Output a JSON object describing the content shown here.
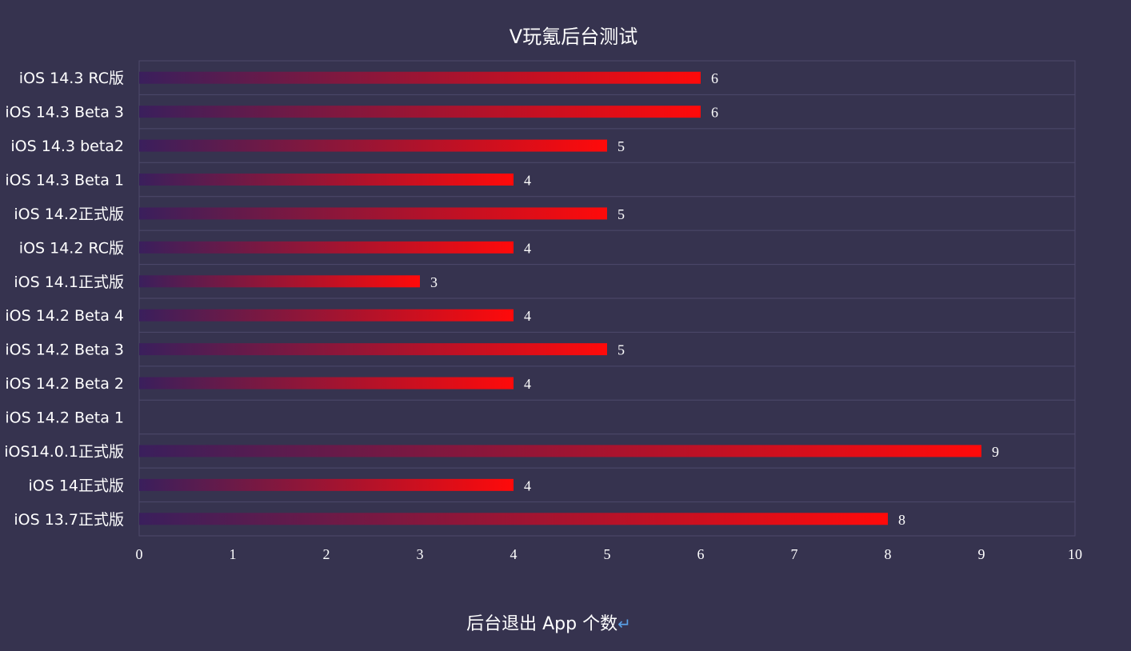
{
  "chart_data": {
    "type": "bar",
    "orientation": "horizontal",
    "title": "V玩氪后台测试",
    "xlabel": "后台退出 App 个数",
    "xlabel_suffix": "↵",
    "xlim": [
      0,
      10
    ],
    "xticks": [
      0,
      1,
      2,
      3,
      4,
      5,
      6,
      7,
      8,
      9,
      10
    ],
    "grid": true,
    "legend": "none",
    "categories": [
      "iOS 14.3 RC版",
      "iOS 14.3 Beta 3",
      "iOS 14.3 beta2",
      "iOS 14.3 Beta 1",
      "iOS 14.2正式版",
      "iOS 14.2 RC版",
      "iOS 14.1正式版",
      "iOS 14.2 Beta 4",
      "iOS 14.2 Beta 3",
      "iOS 14.2 Beta 2",
      "iOS 14.2 Beta 1",
      "iOS14.0.1正式版",
      "iOS 14正式版",
      "iOS 13.7正式版"
    ],
    "values": [
      6,
      6,
      5,
      4,
      5,
      4,
      3,
      4,
      5,
      4,
      null,
      9,
      4,
      8
    ],
    "colors": {
      "background": "#36334f",
      "bar_start": "#3a1f5c",
      "bar_end": "#ff0a0a",
      "grid": "#4d4a6b"
    }
  }
}
